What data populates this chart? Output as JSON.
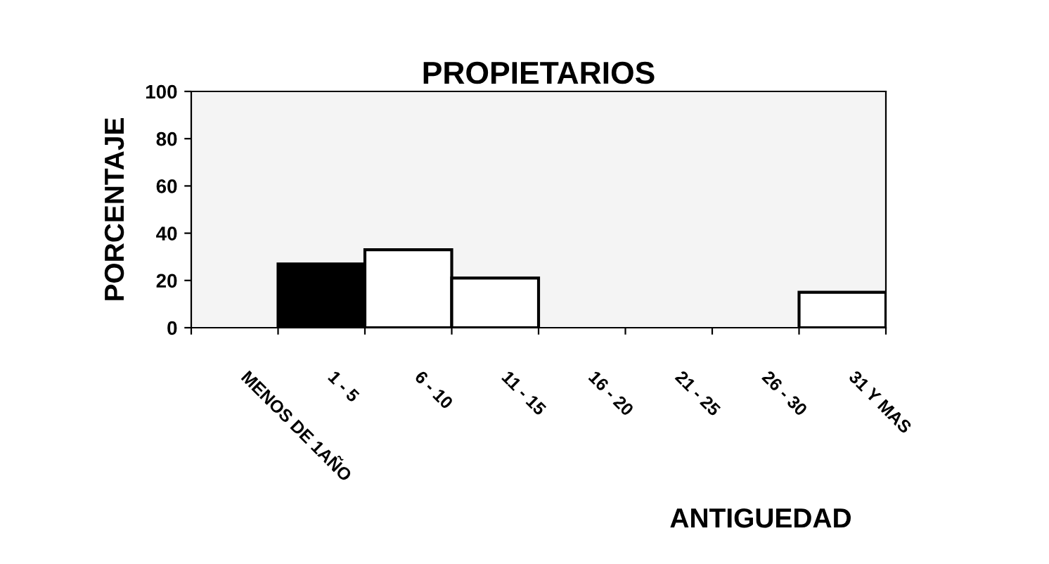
{
  "chart_data": {
    "type": "bar",
    "title": "PROPIETARIOS",
    "xlabel": "ANTIGUEDAD",
    "ylabel": "PORCENTAJE",
    "categories": [
      "MENOS DE 1AÑO",
      "1 - 5",
      "6 - 10",
      "11 - 15",
      "16 - 20",
      "21 - 25",
      "26 - 30",
      "31 Y MAS"
    ],
    "values": [
      null,
      27,
      33,
      21,
      null,
      null,
      null,
      15
    ],
    "colors": [
      "#ffffff",
      "#000000",
      "#ffffff",
      "#ffffff",
      "#ffffff",
      "#ffffff",
      "#ffffff",
      "#ffffff"
    ],
    "ylim": [
      0,
      100
    ],
    "yticks": [
      0,
      20,
      40,
      60,
      80,
      100
    ],
    "grid": false,
    "legend": false
  }
}
